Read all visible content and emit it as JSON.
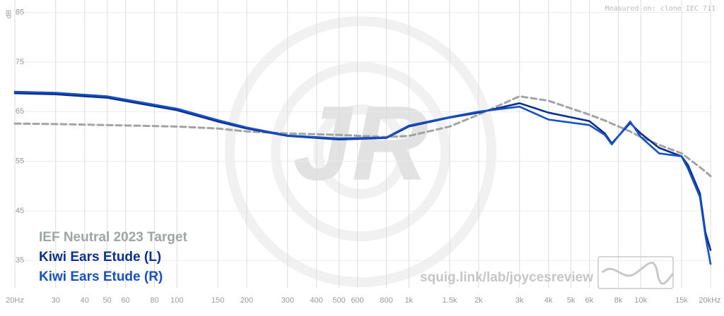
{
  "chart_data": {
    "type": "line",
    "y_axis_label": "dB",
    "annotation": "Measured on: clone IEC 711",
    "watermark": "squig.link/lab/joycesreview",
    "x_scale": "log",
    "grid": true,
    "legend": "lower left",
    "xlim": [
      20,
      20000
    ],
    "ylim": [
      29.5,
      87.5
    ],
    "yticks": [
      35,
      45,
      55,
      65,
      75,
      85
    ],
    "xticks": [
      {
        "value": 20,
        "label": "20Hz"
      },
      30,
      40,
      50,
      60,
      80,
      100,
      150,
      200,
      300,
      400,
      500,
      600,
      800,
      {
        "value": 1000,
        "label": "1k"
      },
      {
        "value": 1500,
        "label": "1.5k"
      },
      {
        "value": 2000,
        "label": "2k"
      },
      {
        "value": 3000,
        "label": "3k"
      },
      {
        "value": 4000,
        "label": "4k"
      },
      {
        "value": 5000,
        "label": "5k"
      },
      {
        "value": 6000,
        "label": "6k"
      },
      {
        "value": 8000,
        "label": "8k"
      },
      {
        "value": 10000,
        "label": "10k"
      },
      {
        "value": 15000,
        "label": "15k"
      },
      {
        "value": 20000,
        "label": "20kHz"
      }
    ],
    "x": [
      20,
      30,
      50,
      100,
      150,
      200,
      300,
      500,
      800,
      1000,
      1500,
      2000,
      3000,
      4000,
      6000,
      7000,
      7500,
      9000,
      10000,
      12000,
      15000,
      16000,
      18000,
      19000,
      20000
    ],
    "series": [
      {
        "name": "IEF Neutral 2023 Target",
        "color": "#a0a4a4",
        "dashed": true,
        "values": [
          62.6,
          62.5,
          62.3,
          62.0,
          61.6,
          61.0,
          60.6,
          60.3,
          59.9,
          60.1,
          62.0,
          64.4,
          68.1,
          67.2,
          64.4,
          63.2,
          62.6,
          61.0,
          59.9,
          58.3,
          56.6,
          55.6,
          53.8,
          52.9,
          52.0
        ]
      },
      {
        "name": "Kiwi Ears Etude (L)",
        "color": "#0b2f8f",
        "dashed": false,
        "values": [
          68.7,
          68.5,
          67.8,
          65.3,
          63.0,
          61.6,
          60.1,
          59.4,
          59.7,
          62.0,
          63.8,
          64.8,
          66.7,
          64.8,
          63.1,
          60.6,
          58.6,
          62.7,
          60.6,
          57.7,
          56.0,
          54.2,
          48.5,
          40.7,
          37.1
        ]
      },
      {
        "name": "Kiwi Ears Etude (R)",
        "color": "#1650c2",
        "dashed": false,
        "values": [
          69.0,
          68.8,
          68.1,
          65.6,
          63.3,
          61.8,
          60.2,
          59.6,
          59.8,
          62.2,
          63.9,
          65.0,
          66.0,
          63.4,
          62.3,
          60.3,
          58.4,
          63.0,
          59.9,
          56.6,
          56.0,
          53.5,
          47.8,
          40.0,
          34.3
        ]
      }
    ]
  }
}
